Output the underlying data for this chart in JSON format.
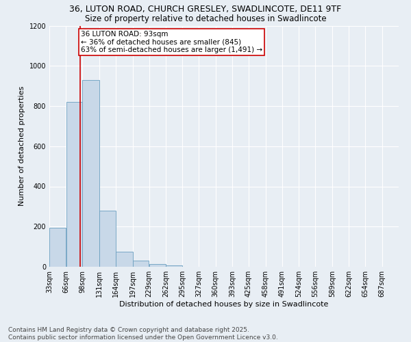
{
  "title_line1": "36, LUTON ROAD, CHURCH GRESLEY, SWADLINCOTE, DE11 9TF",
  "title_line2": "Size of property relative to detached houses in Swadlincote",
  "xlabel": "Distribution of detached houses by size in Swadlincote",
  "ylabel": "Number of detached properties",
  "annotation_title": "36 LUTON ROAD: 93sqm",
  "annotation_line2": "← 36% of detached houses are smaller (845)",
  "annotation_line3": "63% of semi-detached houses are larger (1,491) →",
  "property_size": 93,
  "bar_left_edges": [
    33,
    66,
    98,
    131,
    164,
    197,
    229,
    262,
    295,
    327,
    360,
    393,
    425,
    458,
    491,
    524,
    556,
    589,
    622,
    654
  ],
  "bar_widths": [
    33,
    32,
    33,
    33,
    33,
    32,
    33,
    33,
    32,
    33,
    33,
    32,
    33,
    33,
    33,
    32,
    33,
    33,
    32,
    33
  ],
  "bar_heights": [
    195,
    820,
    930,
    280,
    75,
    30,
    15,
    8,
    0,
    0,
    0,
    0,
    0,
    0,
    0,
    0,
    0,
    0,
    0,
    0
  ],
  "bar_color": "#c8d8e8",
  "bar_edge_color": "#6a9fc0",
  "vline_color": "#cc0000",
  "vline_x": 93,
  "annotation_box_color": "#cc0000",
  "background_color": "#e8eef4",
  "grid_color": "#ffffff",
  "ylim": [
    0,
    1200
  ],
  "yticks": [
    0,
    200,
    400,
    600,
    800,
    1000,
    1200
  ],
  "tick_labels": [
    "33sqm",
    "66sqm",
    "98sqm",
    "131sqm",
    "164sqm",
    "197sqm",
    "229sqm",
    "262sqm",
    "295sqm",
    "327sqm",
    "360sqm",
    "393sqm",
    "425sqm",
    "458sqm",
    "491sqm",
    "524sqm",
    "556sqm",
    "589sqm",
    "622sqm",
    "654sqm",
    "687sqm"
  ],
  "footer_line1": "Contains HM Land Registry data © Crown copyright and database right 2025.",
  "footer_line2": "Contains public sector information licensed under the Open Government Licence v3.0.",
  "title_fontsize": 9,
  "subtitle_fontsize": 8.5,
  "axis_label_fontsize": 8,
  "tick_fontsize": 7,
  "annotation_fontsize": 7.5,
  "footer_fontsize": 6.5
}
